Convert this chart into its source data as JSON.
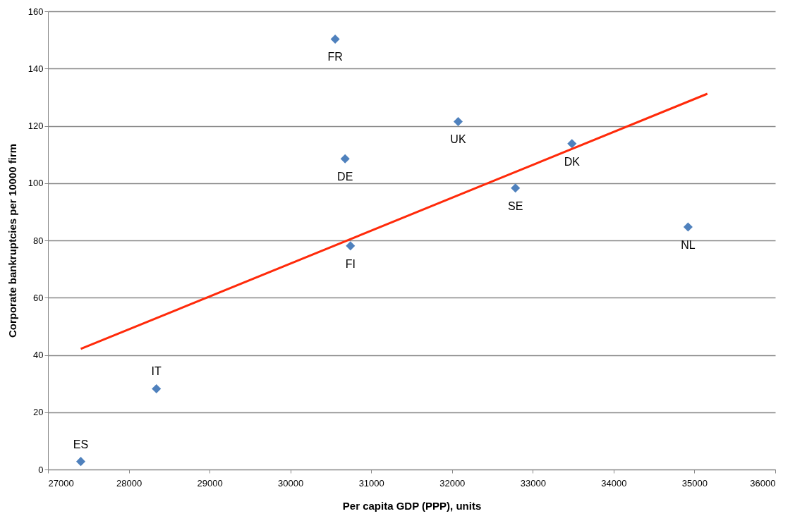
{
  "chart_data": {
    "type": "scatter",
    "xlabel": "Per capita GDP (PPP), units",
    "ylabel": "Corporate bankruptcies per 10000 firm",
    "xlim": [
      27000,
      36000
    ],
    "xticks": [
      27000,
      28000,
      29000,
      30000,
      31000,
      32000,
      33000,
      34000,
      35000,
      36000
    ],
    "ylim": [
      0,
      160
    ],
    "yticks": [
      0,
      20,
      40,
      60,
      80,
      100,
      120,
      140,
      160
    ],
    "grid": "y",
    "series": [
      {
        "marker": "diamond",
        "color": "#4f81bd",
        "x": [
          27406,
          28342,
          30554,
          30677,
          30743,
          32076,
          32785,
          33484,
          34921
        ],
        "values": [
          2.8,
          28.2,
          150.3,
          108.5,
          78.1,
          121.5,
          98.3,
          113.8,
          84.7
        ]
      },
      {
        "type": "line",
        "color": "#ff2a0a",
        "x": [
          27406,
          35160
        ],
        "values": [
          42.1,
          131.2
        ]
      }
    ],
    "annotations": [
      {
        "text": "ES",
        "x": 27406,
        "y": 2.8
      },
      {
        "text": "IT",
        "x": 28342,
        "y": 28.2
      },
      {
        "text": "FR",
        "x": 30554,
        "y": 150.3
      },
      {
        "text": "DE",
        "x": 30677,
        "y": 108.5
      },
      {
        "text": "FI",
        "x": 30743,
        "y": 78.1
      },
      {
        "text": "UK",
        "x": 32076,
        "y": 121.5
      },
      {
        "text": "SE",
        "x": 32785,
        "y": 98.3
      },
      {
        "text": "DK",
        "x": 33484,
        "y": 113.8
      },
      {
        "text": "NL",
        "x": 34921,
        "y": 84.7
      }
    ]
  }
}
